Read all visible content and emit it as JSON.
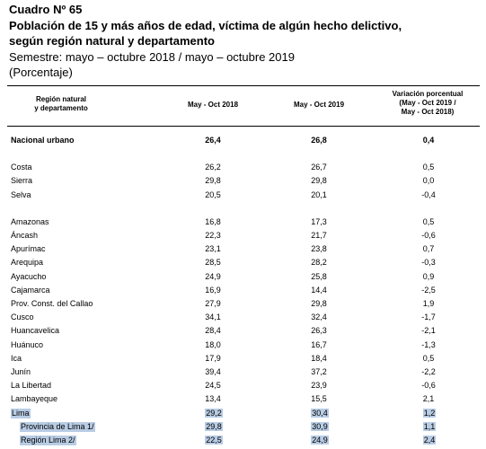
{
  "header": {
    "number": "Cuadro Nº 65",
    "title_lines": [
      "Población de 15 y más años de edad, víctima de algún hecho delictivo,",
      "según región natural y departamento"
    ],
    "period": "Semestre: mayo – octubre 2018 / mayo – octubre 2019",
    "unit": "(Porcentaje)"
  },
  "table": {
    "columns": [
      "Región natural\ny departamento",
      "May - Oct 2018",
      "May - Oct 2019",
      "Variación porcentual\n(May - Oct 2019 /\nMay - Oct 2018)"
    ],
    "groups": [
      {
        "rows": [
          {
            "cells": [
              "Nacional urbano",
              "26,4",
              "26,8",
              "0,4"
            ],
            "bold": true
          }
        ]
      },
      {
        "rows": [
          {
            "cells": [
              "Costa",
              "26,2",
              "26,7",
              "0,5"
            ]
          },
          {
            "cells": [
              "Sierra",
              "29,8",
              "29,8",
              "0,0"
            ]
          },
          {
            "cells": [
              "Selva",
              "20,5",
              "20,1",
              "-0,4"
            ]
          }
        ]
      },
      {
        "rows": [
          {
            "cells": [
              "Amazonas",
              "16,8",
              "17,3",
              "0,5"
            ]
          },
          {
            "cells": [
              "Áncash",
              "22,3",
              "21,7",
              "-0,6"
            ]
          },
          {
            "cells": [
              "Apurímac",
              "23,1",
              "23,8",
              "0,7"
            ]
          },
          {
            "cells": [
              "Arequipa",
              "28,5",
              "28,2",
              "-0,3"
            ]
          },
          {
            "cells": [
              "Ayacucho",
              "24,9",
              "25,8",
              "0,9"
            ]
          },
          {
            "cells": [
              "Cajamarca",
              "16,9",
              "14,4",
              "-2,5"
            ]
          },
          {
            "cells": [
              "Prov. Const. del Callao",
              "27,9",
              "29,8",
              "1,9"
            ]
          },
          {
            "cells": [
              "Cusco",
              "34,1",
              "32,4",
              "-1,7"
            ]
          },
          {
            "cells": [
              "Huancavelica",
              "28,4",
              "26,3",
              "-2,1"
            ]
          },
          {
            "cells": [
              "Huánuco",
              "18,0",
              "16,7",
              "-1,3"
            ]
          },
          {
            "cells": [
              "Ica",
              "17,9",
              "18,4",
              "0,5"
            ]
          },
          {
            "cells": [
              "Junín",
              "39,4",
              "37,2",
              "-2,2"
            ]
          },
          {
            "cells": [
              "La Libertad",
              "24,5",
              "23,9",
              "-0,6"
            ]
          },
          {
            "cells": [
              "Lambayeque",
              "13,4",
              "15,5",
              "2,1"
            ]
          },
          {
            "cells": [
              "Lima",
              "29,2",
              "30,4",
              "1,2"
            ],
            "highlighted": true
          },
          {
            "cells": [
              "Provincia de Lima 1/",
              "29,8",
              "30,9",
              "1,1"
            ],
            "highlighted": true,
            "indent": true
          },
          {
            "cells": [
              "Región Lima 2/",
              "22,5",
              "24,9",
              "2,4"
            ],
            "highlighted": true,
            "indent": true
          }
        ]
      }
    ]
  }
}
